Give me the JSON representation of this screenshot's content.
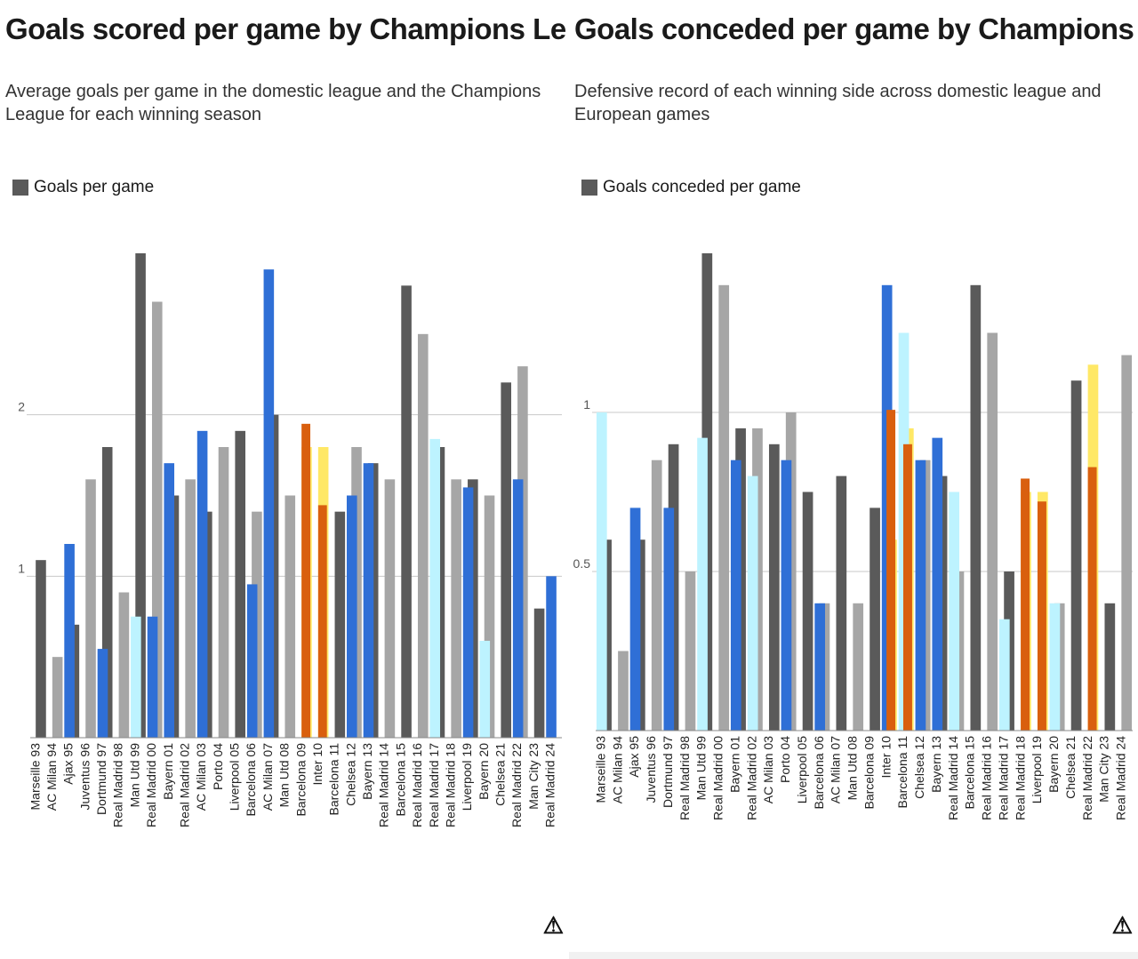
{
  "colors": {
    "total": "#5a5a5a",
    "total_light": "#a6a6a6",
    "league": "#2f6fd6",
    "league_light": "#bdf3ff",
    "highlight": "#d95f0e",
    "highlight_light": "#ffe866",
    "grid": "#c8c8c8"
  },
  "chart_data": [
    {
      "type": "bar",
      "title": "Goals scored per game by Champions League winners",
      "subtitle": "Average goals per game in the domestic league and the Champions League for each winning season",
      "legend": [
        "Goals per game"
      ],
      "ylim": [
        0,
        3
      ],
      "yticks": [
        1,
        2
      ],
      "categories": [
        "Marseille 93",
        "AC Milan 94",
        "Ajax 95",
        "Juventus 96",
        "Dortmund 97",
        "Real Madrid 98",
        "Man Utd 99",
        "Real Madrid 00",
        "Bayern 01",
        "Real Madrid 02",
        "AC Milan 03",
        "Porto 04",
        "Liverpool 05",
        "Barcelona 06",
        "AC Milan 07",
        "Man Utd 08",
        "Barcelona 09",
        "Inter 10",
        "Barcelona 11",
        "Chelsea 12",
        "Bayern 13",
        "Real Madrid 14",
        "Barcelona 15",
        "Real Madrid 16",
        "Real Madrid 17",
        "Real Madrid 18",
        "Liverpool 19",
        "Bayern 20",
        "Chelsea 21",
        "Real Madrid 22",
        "Man City 23",
        "Real Madrid 24"
      ],
      "series": [
        {
          "name": "Total",
          "values": [
            1.1,
            0.5,
            0.7,
            1.6,
            1.8,
            0.9,
            3.0,
            2.7,
            1.5,
            1.6,
            1.4,
            1.8,
            1.9,
            1.4,
            2.0,
            1.5,
            1.8,
            1.8,
            1.4,
            1.8,
            1.7,
            1.6,
            2.8,
            2.5,
            1.8,
            1.6,
            1.6,
            1.5,
            2.2,
            2.3,
            0.8,
            0.0
          ]
        },
        {
          "name": "League",
          "values": [
            0.0,
            0.0,
            1.2,
            0.0,
            0.55,
            0.0,
            0.75,
            0.75,
            1.7,
            0.0,
            1.9,
            0.0,
            0.0,
            0.95,
            2.9,
            0.0,
            0.0,
            0.0,
            0.0,
            1.5,
            1.7,
            0.0,
            0.0,
            0.0,
            1.85,
            0.0,
            1.55,
            0.6,
            0.0,
            1.6,
            0.0,
            1.0
          ]
        },
        {
          "name": "Highlight",
          "values": [
            0,
            0,
            0,
            0,
            0,
            0,
            0,
            0,
            0,
            0,
            0,
            0,
            0,
            0,
            0,
            0,
            2.7,
            2.0,
            0,
            0,
            0,
            0,
            0,
            0,
            0,
            0,
            0,
            0,
            0,
            0,
            0,
            0
          ]
        }
      ]
    },
    {
      "type": "bar",
      "title": "Goals conceded per game by Champions League winners",
      "subtitle": "Defensive record of each winning side across domestic league and European games",
      "legend": [
        "Goals conceded per game"
      ],
      "ylim": [
        0,
        1.5
      ],
      "yticks": [
        0.5,
        1
      ],
      "categories": [
        "Marseille 93",
        "AC Milan 94",
        "Ajax 95",
        "Juventus 96",
        "Dortmund 97",
        "Real Madrid 98",
        "Man Utd 99",
        "Real Madrid 00",
        "Bayern 01",
        "Real Madrid 02",
        "AC Milan 03",
        "Porto 04",
        "Liverpool 05",
        "Barcelona 06",
        "AC Milan 07",
        "Man Utd 08",
        "Barcelona 09",
        "Inter 10",
        "Barcelona 11",
        "Chelsea 12",
        "Bayern 13",
        "Real Madrid 14",
        "Barcelona 15",
        "Real Madrid 16",
        "Real Madrid 17",
        "Real Madrid 18",
        "Liverpool 19",
        "Bayern 20",
        "Chelsea 21",
        "Real Madrid 22",
        "Man City 23",
        "Real Madrid 24"
      ],
      "series": [
        {
          "name": "Total",
          "values": [
            0.6,
            0.25,
            0.6,
            0.85,
            0.9,
            0.5,
            1.5,
            1.4,
            0.95,
            0.95,
            0.9,
            1.0,
            0.75,
            0.4,
            0.8,
            0.4,
            0.7,
            0.6,
            0.95,
            0.85,
            0.8,
            0.5,
            1.4,
            1.25,
            0.5,
            0.75,
            0.75,
            0.4,
            1.1,
            1.15,
            0.4,
            1.18
          ]
        },
        {
          "name": "League",
          "values": [
            1.0,
            0.0,
            0.7,
            0.0,
            0.7,
            0.0,
            0.92,
            0.0,
            0.85,
            0.8,
            0.0,
            0.85,
            0.0,
            0.4,
            0.0,
            0.0,
            0.0,
            1.4,
            1.25,
            0.85,
            0.92,
            0.75,
            0.0,
            0.0,
            0.35,
            0.0,
            0.0,
            0.4,
            0.0,
            0.0,
            0.0,
            0.0
          ]
        },
        {
          "name": "Highlight",
          "values": [
            0,
            0,
            0,
            0,
            0,
            0,
            0,
            0,
            0,
            0,
            0,
            0,
            0,
            0,
            0,
            0,
            0,
            1.4,
            1.25,
            0,
            0,
            0,
            0,
            0,
            0,
            1.1,
            1.0,
            0,
            0,
            1.15,
            0,
            0
          ]
        }
      ]
    }
  ],
  "left": {
    "title": "Goals scored per game by Champions League winners",
    "subtitle": "Average goals per game in the domestic league and the Champions League for each winning season",
    "legend": "Goals per game",
    "logo": "⚠"
  },
  "right": {
    "title": "Goals conceded per game by Champions League winners",
    "subtitle": "Defensive record of each winning side across domestic league and European games",
    "legend": "Goals conceded per game",
    "logo": "⚠"
  }
}
